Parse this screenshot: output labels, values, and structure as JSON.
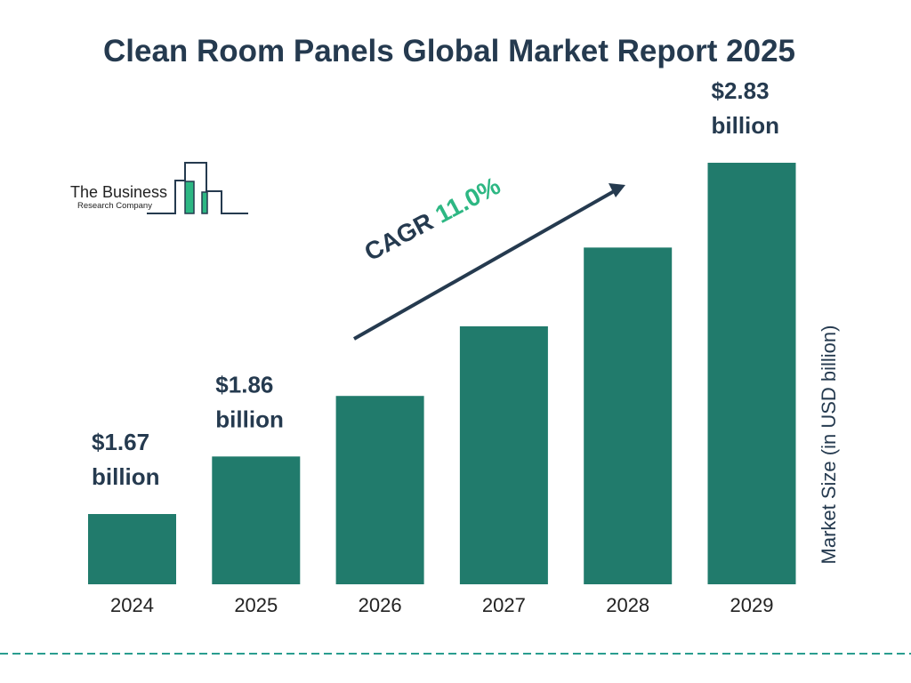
{
  "chart_data": {
    "type": "bar",
    "title": "Clean Room Panels Global Market Report 2025",
    "ylabel": "Market Size (in USD billion)",
    "categories": [
      "2024",
      "2025",
      "2026",
      "2027",
      "2028",
      "2029"
    ],
    "values": [
      1.67,
      1.86,
      2.06,
      2.29,
      2.55,
      2.83
    ],
    "data_labels": {
      "2024": "$1.67 billion",
      "2025": "$1.86 billion",
      "2029": "$2.83 billion"
    },
    "annotation": {
      "label": "CAGR",
      "value": "11.0%"
    },
    "bar_color": "#217b6c",
    "grid": false
  },
  "labels": {
    "l2024": [
      "$1.67",
      "billion"
    ],
    "l2025": [
      "$1.86",
      "billion"
    ],
    "l2029": [
      "$2.83",
      "billion"
    ]
  },
  "logo": {
    "line1": "The Business",
    "line2": "Research Company"
  },
  "colors": {
    "accent": "#2db783",
    "text": "#253a4f",
    "divider": "#2a9d8f"
  }
}
